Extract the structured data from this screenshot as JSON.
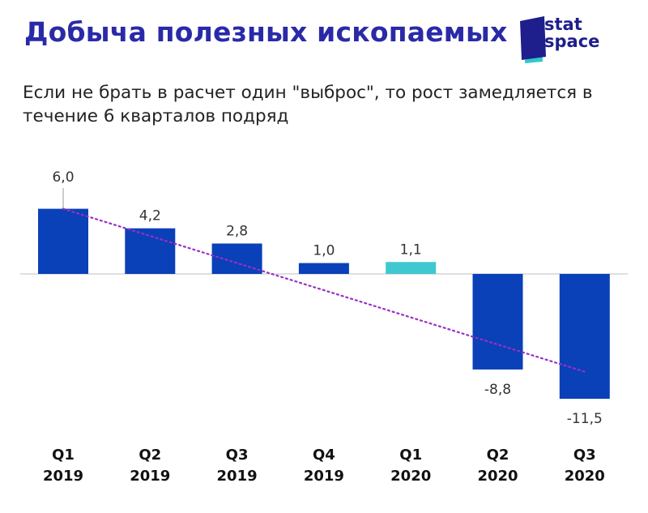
{
  "title": "Добыча полезных ископаемых",
  "subtitle": "Если не брать в расчет один \"выброс\", то рост замедляется в течение 6 кварталов подряд",
  "logo": {
    "line1": "stat",
    "line2": "space"
  },
  "colors": {
    "title": "#2a2aa8",
    "bar": "#0a40b8",
    "highlight": "#40c8d0",
    "trend": "#9a2fc4",
    "logo_dark": "#1e1e8c",
    "logo_teal": "#2ec9c9"
  },
  "chart_data": {
    "type": "bar",
    "categories": [
      "Q1\n2019",
      "Q2\n2019",
      "Q3\n2019",
      "Q4\n2019",
      "Q1\n2020",
      "Q2\n2020",
      "Q3\n2020"
    ],
    "values": [
      6.0,
      4.2,
      2.8,
      1.0,
      1.1,
      -8.8,
      -11.5
    ],
    "value_labels": [
      "6,0",
      "4,2",
      "2,8",
      "1,0",
      "1,1",
      "-8,8",
      "-11,5"
    ],
    "highlighted_index": 4,
    "ylim": [
      -11.5,
      6.0
    ],
    "trendline": {
      "from_value": 6.0,
      "to_value": -9.0,
      "style": "dotted"
    },
    "grid": false,
    "xlabel": "",
    "ylabel": ""
  }
}
